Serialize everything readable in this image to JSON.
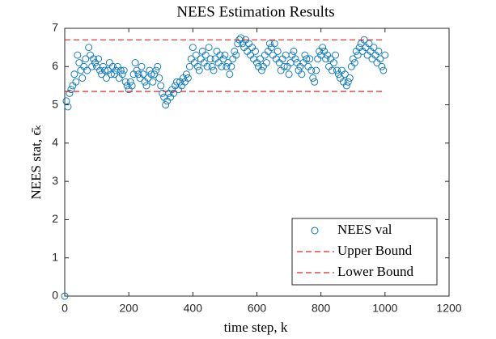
{
  "chart_data": {
    "type": "scatter",
    "title": "NEES Estimation Results",
    "xlabel": "time step, k",
    "ylabel": "NEES stat, ϵ̄ₖ",
    "xlim": [
      0,
      1200
    ],
    "xticks": [
      0,
      200,
      400,
      600,
      800,
      1000,
      1200
    ],
    "ylim": [
      0,
      7
    ],
    "yticks": [
      0,
      1,
      2,
      3,
      4,
      5,
      6,
      7
    ],
    "legend": "lower-right",
    "series": [
      {
        "name": "NEES val",
        "color": "#0072bd",
        "mark": "circle",
        "x": [
          0,
          5,
          10,
          15,
          20,
          25,
          30,
          35,
          40,
          45,
          50,
          55,
          60,
          65,
          70,
          75,
          80,
          85,
          90,
          95,
          100,
          105,
          110,
          115,
          120,
          125,
          130,
          135,
          140,
          145,
          150,
          155,
          160,
          165,
          170,
          175,
          180,
          185,
          190,
          195,
          200,
          205,
          210,
          215,
          220,
          225,
          230,
          235,
          240,
          245,
          250,
          255,
          260,
          265,
          270,
          275,
          280,
          285,
          290,
          295,
          300,
          305,
          310,
          315,
          320,
          325,
          330,
          335,
          340,
          345,
          350,
          355,
          360,
          365,
          370,
          375,
          380,
          385,
          390,
          395,
          400,
          405,
          410,
          415,
          420,
          425,
          430,
          435,
          440,
          445,
          450,
          455,
          460,
          465,
          470,
          475,
          480,
          485,
          490,
          495,
          500,
          505,
          510,
          515,
          520,
          525,
          530,
          535,
          540,
          545,
          550,
          555,
          560,
          565,
          570,
          575,
          580,
          585,
          590,
          595,
          600,
          605,
          610,
          615,
          620,
          625,
          630,
          635,
          640,
          645,
          650,
          655,
          660,
          665,
          670,
          675,
          680,
          685,
          690,
          695,
          700,
          705,
          710,
          715,
          720,
          725,
          730,
          735,
          740,
          745,
          750,
          755,
          760,
          765,
          770,
          775,
          780,
          785,
          790,
          795,
          800,
          805,
          810,
          815,
          820,
          825,
          830,
          835,
          840,
          845,
          850,
          855,
          860,
          865,
          870,
          875,
          880,
          885,
          890,
          895,
          900,
          905,
          910,
          915,
          920,
          925,
          930,
          935,
          940,
          945,
          950,
          955,
          960,
          965,
          970,
          975,
          980,
          985,
          990,
          995,
          1000
        ],
        "values": [
          0,
          5.1,
          4.95,
          5.3,
          5.4,
          5.5,
          5.8,
          5.6,
          6.3,
          6.1,
          5.9,
          5.7,
          6.0,
          6.2,
          5.9,
          6.5,
          6.3,
          6.0,
          6.2,
          6.1,
          6.0,
          6.2,
          5.9,
          5.8,
          6.0,
          5.9,
          5.7,
          5.9,
          6.1,
          5.8,
          6.0,
          5.8,
          5.9,
          6.0,
          5.7,
          5.9,
          5.8,
          5.9,
          5.6,
          5.5,
          5.4,
          5.6,
          5.5,
          5.8,
          6.1,
          5.9,
          5.8,
          5.7,
          6.0,
          5.8,
          5.6,
          5.5,
          5.7,
          5.9,
          5.8,
          5.6,
          5.8,
          5.9,
          6.0,
          5.7,
          5.5,
          5.3,
          5.2,
          5.0,
          5.1,
          5.3,
          5.2,
          5.4,
          5.3,
          5.5,
          5.6,
          5.4,
          5.6,
          5.5,
          5.7,
          5.6,
          5.8,
          5.7,
          6.0,
          6.2,
          6.5,
          6.1,
          6.3,
          6.0,
          5.9,
          6.2,
          6.4,
          6.1,
          6.3,
          6.0,
          6.5,
          6.2,
          6.0,
          5.9,
          6.2,
          6.4,
          6.1,
          6.3,
          6.0,
          6.2,
          6.3,
          6.0,
          6.1,
          5.8,
          6.0,
          6.2,
          6.4,
          6.3,
          6.6,
          6.7,
          6.75,
          6.6,
          6.5,
          6.7,
          6.4,
          6.6,
          6.3,
          6.5,
          6.2,
          6.4,
          6.1,
          6.0,
          6.2,
          5.9,
          6.0,
          6.3,
          6.1,
          6.4,
          6.6,
          6.5,
          6.3,
          6.6,
          6.2,
          6.4,
          6.1,
          5.9,
          6.2,
          6.0,
          6.3,
          6.0,
          5.8,
          6.1,
          6.3,
          6.4,
          6.2,
          6.1,
          5.9,
          6.0,
          5.8,
          6.1,
          6.3,
          6.2,
          6.0,
          6.2,
          5.9,
          5.7,
          5.6,
          5.9,
          6.2,
          6.4,
          6.3,
          6.5,
          6.4,
          6.2,
          6.3,
          6.0,
          6.2,
          5.9,
          6.1,
          6.3,
          5.9,
          5.8,
          5.7,
          5.9,
          5.6,
          5.8,
          5.5,
          5.6,
          5.7,
          6.0,
          6.2,
          6.1,
          6.4,
          6.3,
          6.5,
          6.6,
          6.4,
          6.7,
          6.5,
          6.3,
          6.6,
          6.4,
          6.2,
          6.5,
          6.3,
          6.1,
          6.4,
          6.2,
          6.0,
          5.9,
          6.3
        ]
      },
      {
        "name": "Upper Bound",
        "color": "#d62728",
        "mark": "dashed-line",
        "x": [
          0,
          1000
        ],
        "values": [
          6.7,
          6.7
        ]
      },
      {
        "name": "Lower Bound",
        "color": "#d62728",
        "mark": "dashed-line",
        "x": [
          0,
          1000
        ],
        "values": [
          5.35,
          5.35
        ]
      }
    ]
  }
}
